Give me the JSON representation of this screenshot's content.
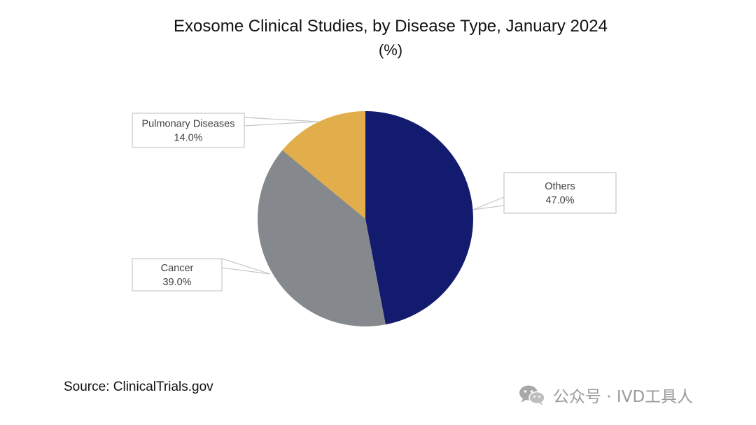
{
  "chart_data": {
    "type": "pie",
    "title": "Exosome Clinical Studies, by Disease Type, January 2024",
    "subtitle": "(%)",
    "slices": [
      {
        "label": "Others",
        "value": 47.0,
        "value_label": "47.0%",
        "color": "#131b6e"
      },
      {
        "label": "Cancer",
        "value": 39.0,
        "value_label": "39.0%",
        "color": "#85888c"
      },
      {
        "label": "Pulmonary Diseases",
        "value": 14.0,
        "value_label": "14.0%",
        "color": "#e2ae4b"
      }
    ],
    "start_angle_deg": 0,
    "direction": "clockwise",
    "legend": "none (callout labels)"
  },
  "source": "Source: ClinicalTrials.gov",
  "watermark": {
    "text": "公众号 · IVD工具人",
    "icon": "wechat-icon"
  }
}
